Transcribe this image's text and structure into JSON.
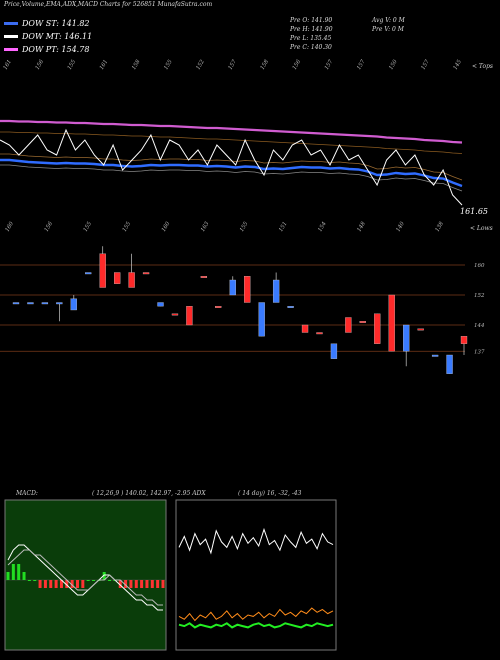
{
  "header": {
    "title": "Price,Volume,EMA,ADX,MACD Charts for 526851 MunafaSutra.com"
  },
  "legend": [
    {
      "label": "DOW ST: 141.82",
      "color": "#3b6cf0"
    },
    {
      "label": "DOW MT: 146.11",
      "color": "#ffffff"
    },
    {
      "label": "DOW PT: 154.78",
      "color": "#ff66ff"
    }
  ],
  "ohlc": {
    "open": "Pre  O: 141.90",
    "high": "Pre  H: 141.90",
    "low": "Pre  L: 135.45",
    "close": "Pre  C: 140.30",
    "avg_vol": "Avg V: 0  M",
    "pre_vol": "Pre  V: 0  M"
  },
  "labels": {
    "tops": "< Tops",
    "lows": "< Lows",
    "last_price": "161.65",
    "macd_label": "MACD:",
    "macd_values": "( 12,26,9 ) 140.02, 142.97, -2.95 ADX",
    "adx_values": "( 14  day) 16, -32, -43"
  },
  "colors": {
    "bull": "#3a7bff",
    "bear": "#ff2a2a",
    "ema_short": "#2f6cff",
    "ema_long": "#d05cd0",
    "macd_bg": "#0a3d0a",
    "adx_bg": "#000000"
  },
  "chart_data": [
    {
      "type": "line",
      "name": "price-ema-panel",
      "top_ticks": [
        "161",
        "156",
        "155",
        "161",
        "158",
        "155",
        "152",
        "157",
        "158",
        "156",
        "157",
        "157",
        "150",
        "157",
        "145"
      ],
      "low_ticks": [
        "160",
        "156",
        "155",
        "155",
        "160",
        "163",
        "155",
        "151",
        "154",
        "148",
        "140",
        "138"
      ],
      "price": [
        151,
        150,
        148,
        150,
        152,
        149,
        148,
        153,
        149,
        151,
        148,
        146,
        150,
        145,
        147,
        149,
        152,
        147,
        151,
        150,
        147,
        149,
        146,
        150,
        148,
        146,
        151,
        147,
        144,
        149,
        147,
        150,
        151,
        148,
        149,
        146,
        150,
        147,
        148,
        145,
        142,
        147,
        149,
        146,
        148,
        144,
        142,
        145,
        140,
        138
      ],
      "ema_short": [
        147,
        147,
        146.8,
        146.6,
        146.5,
        146.4,
        146.3,
        146.4,
        146.3,
        146.3,
        146.2,
        146.0,
        146.0,
        145.8,
        145.7,
        145.8,
        146.0,
        145.9,
        146.0,
        146.0,
        145.9,
        145.9,
        145.7,
        145.8,
        145.7,
        145.5,
        145.7,
        145.6,
        145.2,
        145.3,
        145.2,
        145.4,
        145.6,
        145.5,
        145.5,
        145.3,
        145.4,
        145.2,
        145.1,
        144.7,
        144.0,
        144.1,
        144.4,
        144.2,
        144.3,
        143.9,
        143.4,
        143.3,
        142.5,
        141.8
      ],
      "ema_long": [
        154.8,
        154.8,
        154.7,
        154.7,
        154.6,
        154.6,
        154.5,
        154.5,
        154.4,
        154.4,
        154.3,
        154.2,
        154.2,
        154.1,
        154.0,
        154.0,
        153.9,
        153.8,
        153.8,
        153.7,
        153.6,
        153.5,
        153.4,
        153.4,
        153.3,
        153.2,
        153.1,
        153.0,
        152.9,
        152.8,
        152.7,
        152.6,
        152.5,
        152.4,
        152.3,
        152.2,
        152.1,
        152.0,
        151.9,
        151.8,
        151.7,
        151.5,
        151.4,
        151.3,
        151.2,
        151.0,
        150.9,
        150.8,
        150.6,
        150.5
      ]
    },
    {
      "type": "bar",
      "name": "candles-panel",
      "y_ticks": [
        "160",
        "152",
        "144",
        "137"
      ],
      "candles": [
        {
          "o": 150,
          "c": 150,
          "h": 150,
          "l": 150,
          "dir": "bull"
        },
        {
          "o": 150,
          "c": 150,
          "h": 150,
          "l": 150,
          "dir": "bull"
        },
        {
          "o": 150,
          "c": 150,
          "h": 150,
          "l": 150,
          "dir": "bull"
        },
        {
          "o": 150,
          "c": 150,
          "h": 150,
          "l": 145,
          "dir": "bull"
        },
        {
          "o": 148,
          "c": 151,
          "h": 152,
          "l": 148,
          "dir": "bull"
        },
        {
          "o": 158,
          "c": 158,
          "h": 158,
          "l": 158,
          "dir": "bull"
        },
        {
          "o": 163,
          "c": 154,
          "h": 165,
          "l": 154,
          "dir": "bear"
        },
        {
          "o": 158,
          "c": 155,
          "h": 158,
          "l": 155,
          "dir": "bear"
        },
        {
          "o": 158,
          "c": 154,
          "h": 163,
          "l": 154,
          "dir": "bear"
        },
        {
          "o": 158,
          "c": 158,
          "h": 158,
          "l": 158,
          "dir": "bear"
        },
        {
          "o": 149,
          "c": 150,
          "h": 150,
          "l": 149,
          "dir": "bull"
        },
        {
          "o": 147,
          "c": 147,
          "h": 147,
          "l": 147,
          "dir": "bear"
        },
        {
          "o": 149,
          "c": 144,
          "h": 149,
          "l": 144,
          "dir": "bear"
        },
        {
          "o": 157,
          "c": 157,
          "h": 157,
          "l": 157,
          "dir": "bear"
        },
        {
          "o": 149,
          "c": 149,
          "h": 149,
          "l": 149,
          "dir": "bear"
        },
        {
          "o": 152,
          "c": 156,
          "h": 157,
          "l": 152,
          "dir": "bull"
        },
        {
          "o": 157,
          "c": 150,
          "h": 157,
          "l": 150,
          "dir": "bear"
        },
        {
          "o": 141,
          "c": 150,
          "h": 150,
          "l": 141,
          "dir": "bull"
        },
        {
          "o": 156,
          "c": 150,
          "h": 158,
          "l": 150,
          "dir": "bull"
        },
        {
          "o": 149,
          "c": 149,
          "h": 149,
          "l": 149,
          "dir": "bull"
        },
        {
          "o": 144,
          "c": 142,
          "h": 144,
          "l": 142,
          "dir": "bear"
        },
        {
          "o": 142,
          "c": 142,
          "h": 142,
          "l": 142,
          "dir": "bear"
        },
        {
          "o": 139,
          "c": 135,
          "h": 139,
          "l": 135,
          "dir": "bull"
        },
        {
          "o": 146,
          "c": 142,
          "h": 146,
          "l": 142,
          "dir": "bear"
        },
        {
          "o": 145,
          "c": 145,
          "h": 145,
          "l": 145,
          "dir": "bear"
        },
        {
          "o": 147,
          "c": 139,
          "h": 147,
          "l": 139,
          "dir": "bear"
        },
        {
          "o": 152,
          "c": 137,
          "h": 152,
          "l": 137,
          "dir": "bear"
        },
        {
          "o": 144,
          "c": 137,
          "h": 144,
          "l": 133,
          "dir": "bull"
        },
        {
          "o": 143,
          "c": 143,
          "h": 143,
          "l": 143,
          "dir": "bear"
        },
        {
          "o": 136,
          "c": 136,
          "h": 136,
          "l": 136,
          "dir": "bull"
        },
        {
          "o": 136,
          "c": 131,
          "h": 136,
          "l": 131,
          "dir": "bull"
        },
        {
          "o": 139,
          "c": 141,
          "h": 141,
          "l": 136,
          "dir": "bear"
        }
      ]
    },
    {
      "type": "line",
      "name": "macd-panel",
      "macd": [
        4,
        6,
        7,
        7,
        6,
        5,
        4,
        3,
        2,
        1,
        0,
        -1,
        -2,
        -3,
        -3,
        -2,
        -1,
        0,
        1,
        1,
        0,
        -1,
        -2,
        -3,
        -4,
        -4,
        -5,
        -5,
        -6,
        -6
      ],
      "signal": [
        3,
        4,
        5,
        6,
        6,
        5,
        5,
        4,
        3,
        2,
        1,
        0,
        -1,
        -2,
        -2,
        -2,
        -1,
        0,
        0,
        1,
        0,
        0,
        -1,
        -2,
        -3,
        -3,
        -4,
        -4,
        -5,
        -5
      ],
      "histogram": [
        1,
        2,
        2,
        1,
        0,
        0,
        -1,
        -1,
        -1,
        -1,
        -1,
        -1,
        -1,
        -1,
        -1,
        0,
        0,
        0,
        1,
        0,
        0,
        -1,
        -1,
        -1,
        -1,
        -1,
        -1,
        -1,
        -1,
        -1
      ]
    },
    {
      "type": "line",
      "name": "adx-panel",
      "plus_di": [
        70,
        78,
        68,
        80,
        72,
        76,
        66,
        82,
        74,
        70,
        78,
        69,
        80,
        73,
        77,
        71,
        83,
        72,
        75,
        68,
        79,
        74,
        70,
        81,
        73,
        76,
        69,
        80,
        74,
        72
      ],
      "minus_di": [
        20,
        18,
        22,
        17,
        21,
        19,
        23,
        18,
        20,
        24,
        19,
        22,
        18,
        21,
        20,
        23,
        19,
        22,
        20,
        25,
        21,
        23,
        20,
        24,
        22,
        26,
        23,
        25,
        22,
        24
      ],
      "adx": [
        14,
        13,
        15,
        12,
        14,
        13,
        12,
        14,
        13,
        15,
        12,
        14,
        13,
        12,
        14,
        15,
        13,
        14,
        12,
        13,
        15,
        14,
        13,
        12,
        14,
        13,
        15,
        14,
        13,
        14
      ]
    }
  ]
}
